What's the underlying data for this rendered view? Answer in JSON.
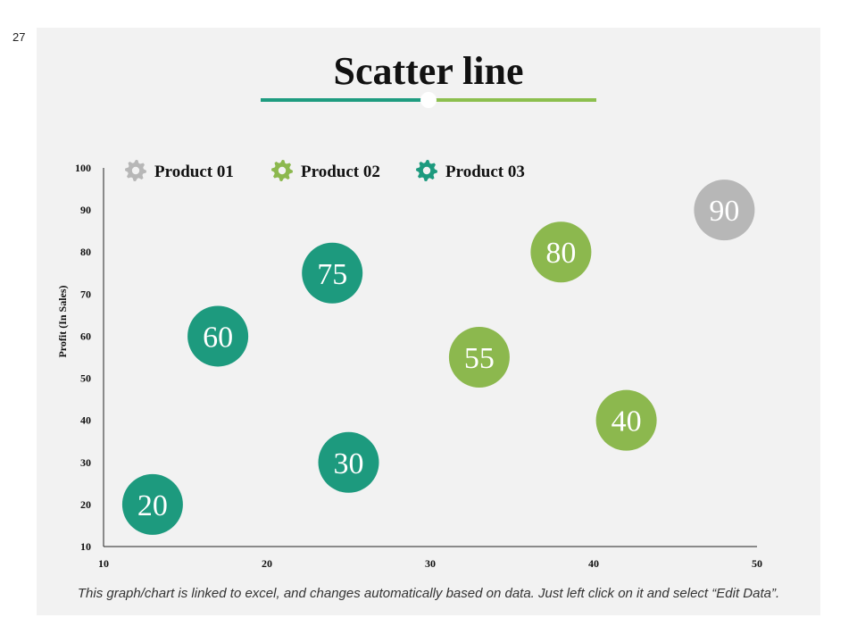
{
  "page": {
    "number": "27"
  },
  "colors": {
    "product_01": "#b7b7b7",
    "product_02": "#8cb84e",
    "product_03": "#1d9a7e",
    "panel_bg": "#f2f2f2"
  },
  "footnote": "This graph/chart is linked to excel, and changes automatically based on data. Just left click on it and select “Edit Data”.",
  "chart_data": {
    "type": "scatter",
    "title": "Scatter line",
    "xlabel": "",
    "ylabel": "Profit (In Sales)",
    "xlim": [
      10,
      50
    ],
    "ylim": [
      10,
      100
    ],
    "x_ticks": [
      "10",
      "20",
      "30",
      "40",
      "50"
    ],
    "y_ticks": [
      "10",
      "20",
      "30",
      "40",
      "50",
      "60",
      "70",
      "80",
      "90",
      "100"
    ],
    "grid": false,
    "legend_position": "top-left",
    "legend_icon": "gear-icon",
    "series": [
      {
        "name": "Product 01",
        "color": "#b7b7b7",
        "points": [
          {
            "x": 48,
            "y": 90,
            "label": "90"
          }
        ]
      },
      {
        "name": "Product 02",
        "color": "#8cb84e",
        "points": [
          {
            "x": 38,
            "y": 80,
            "label": "80"
          },
          {
            "x": 33,
            "y": 55,
            "label": "55"
          },
          {
            "x": 42,
            "y": 40,
            "label": "40"
          }
        ]
      },
      {
        "name": "Product 03",
        "color": "#1d9a7e",
        "points": [
          {
            "x": 24,
            "y": 75,
            "label": "75"
          },
          {
            "x": 17,
            "y": 60,
            "label": "60"
          },
          {
            "x": 25,
            "y": 30,
            "label": "30"
          },
          {
            "x": 13,
            "y": 20,
            "label": "20"
          }
        ]
      }
    ]
  }
}
